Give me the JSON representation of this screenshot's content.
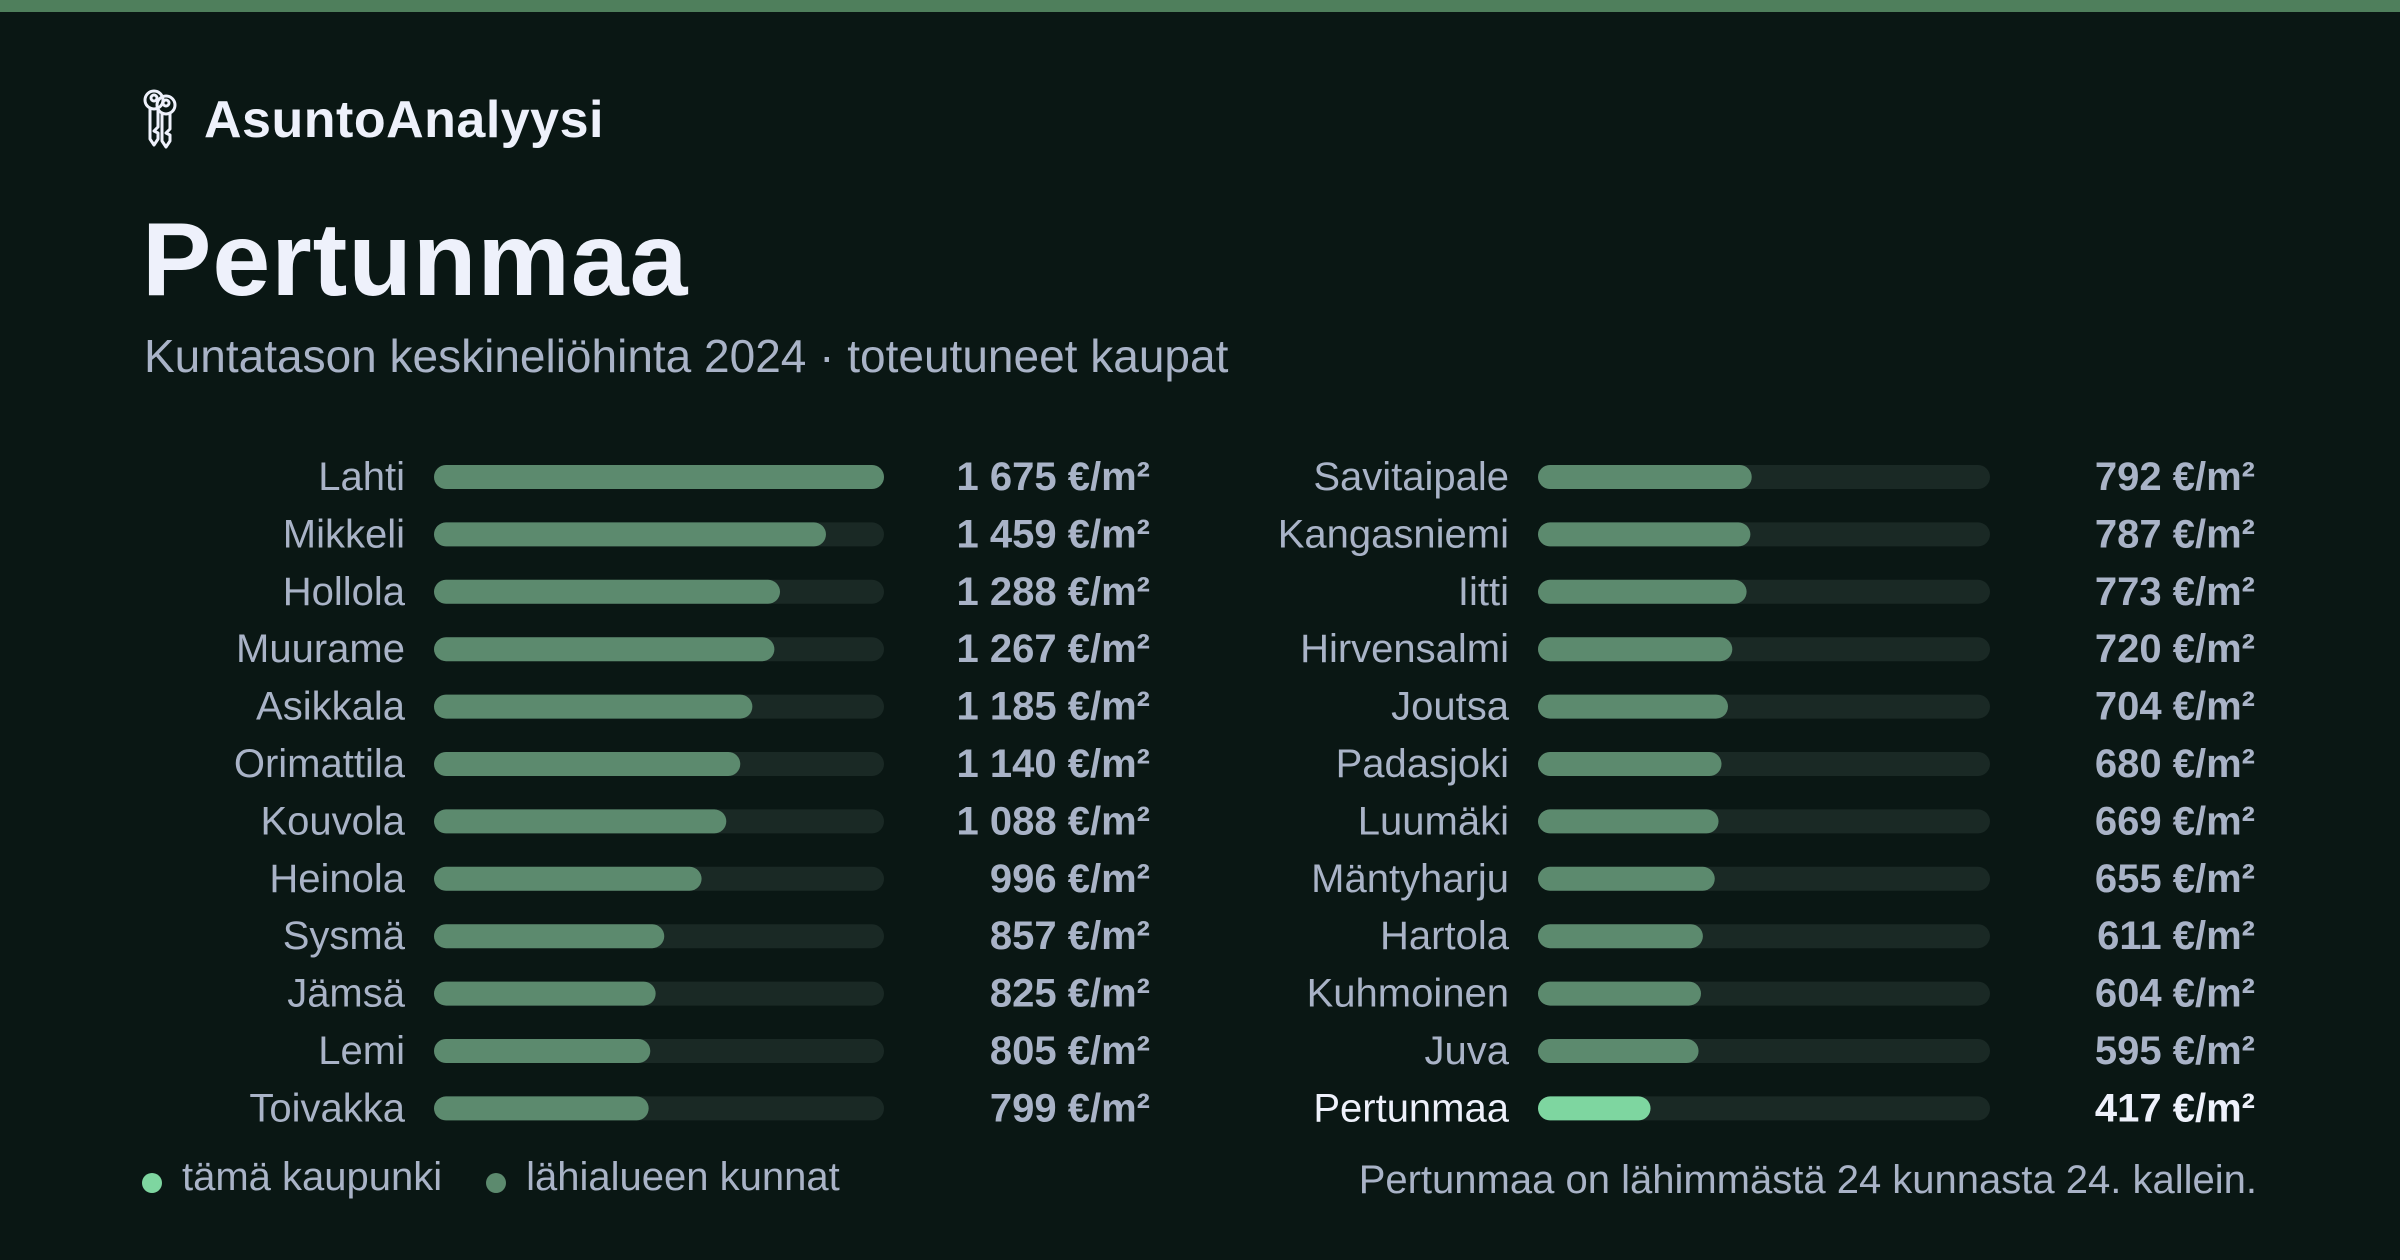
{
  "app": {
    "name": "AsuntoAnalyysi",
    "logo_icon": "keys-icon"
  },
  "header": {
    "title": "Pertunmaa",
    "subtitle": "Kuntatason keskineliöhinta 2024 · toteutuneet kaupat"
  },
  "colors": {
    "accent_bar": "#4f7f5c",
    "background": "#0a1714",
    "bar_neighbor": "#5c8a6e",
    "bar_highlight": "#7ed6a0",
    "bar_track": "#1a2925",
    "text_primary": "#eef1fb",
    "text_secondary": "#a9b3c7"
  },
  "chart_data": {
    "type": "bar",
    "orientation": "horizontal",
    "unit": "€/m²",
    "xlim": [
      0,
      1675
    ],
    "highlight": "Pertunmaa",
    "categories": [
      "Lahti",
      "Mikkeli",
      "Hollola",
      "Muurame",
      "Asikkala",
      "Orimattila",
      "Kouvola",
      "Heinola",
      "Sysmä",
      "Jämsä",
      "Lemi",
      "Toivakka",
      "Savitaipale",
      "Kangasniemi",
      "Iitti",
      "Hirvensalmi",
      "Joutsa",
      "Padasjoki",
      "Luumäki",
      "Mäntyharju",
      "Hartola",
      "Kuhmoinen",
      "Juva",
      "Pertunmaa"
    ],
    "values": [
      1675,
      1459,
      1288,
      1267,
      1185,
      1140,
      1088,
      996,
      857,
      825,
      805,
      799,
      792,
      787,
      773,
      720,
      704,
      680,
      669,
      655,
      611,
      604,
      595,
      417
    ],
    "value_labels": [
      "1 675 €/m²",
      "1 459 €/m²",
      "1 288 €/m²",
      "1 267 €/m²",
      "1 185 €/m²",
      "1 140 €/m²",
      "1 088 €/m²",
      "996 €/m²",
      "857 €/m²",
      "825 €/m²",
      "805 €/m²",
      "799 €/m²",
      "792 €/m²",
      "787 €/m²",
      "773 €/m²",
      "720 €/m²",
      "704 €/m²",
      "680 €/m²",
      "669 €/m²",
      "655 €/m²",
      "611 €/m²",
      "604 €/m²",
      "595 €/m²",
      "417 €/m²"
    ]
  },
  "legend": {
    "this_city": "tämä kaupunki",
    "nearby": "lähialueen kunnat"
  },
  "footer": {
    "rank_note": "Pertunmaa on lähimmästä 24 kunnasta 24. kallein."
  }
}
